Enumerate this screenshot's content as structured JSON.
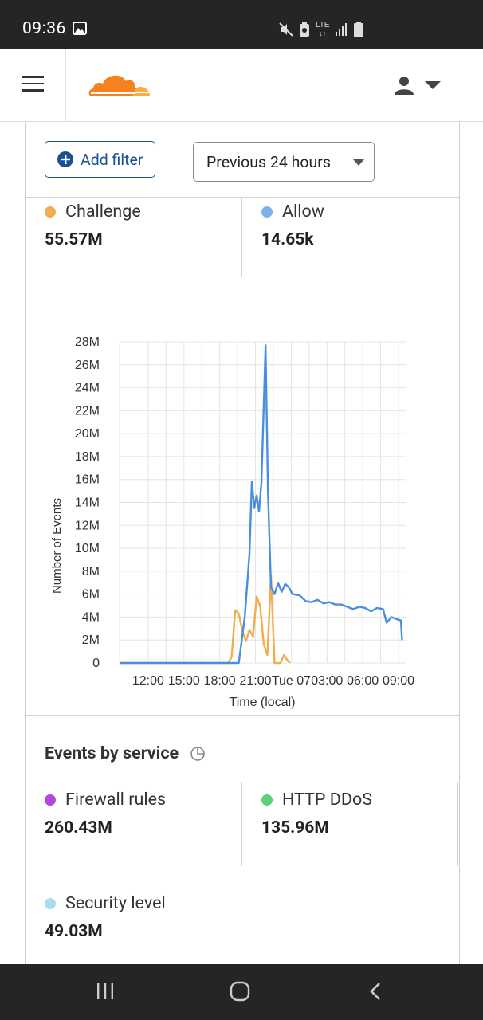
{
  "status_bar": {
    "time": "09:36",
    "icons": [
      "gallery-icon",
      "mute-icon",
      "battery-saver-icon",
      "lte-icon",
      "signal-icon",
      "battery-icon"
    ],
    "lte_label": "LTE"
  },
  "header": {
    "logo": "cloudflare-logo",
    "colors": {
      "logo_orange": "#f6821f",
      "logo_light": "#fbad41"
    }
  },
  "filters": {
    "add_filter_label": "Add filter",
    "time_range_value": "Previous 24 hours"
  },
  "action_stats": [
    {
      "label": "Challenge",
      "value": "55.57M",
      "color": "#f2ad4e"
    },
    {
      "label": "Allow",
      "value": "14.65k",
      "color": "#7fb1ea"
    }
  ],
  "chart_data": {
    "type": "line",
    "xlabel": "Time (local)",
    "ylabel": "Number of Events",
    "ylim": [
      0,
      28000000
    ],
    "y_ticks": [
      "28M",
      "26M",
      "24M",
      "22M",
      "20M",
      "18M",
      "16M",
      "14M",
      "12M",
      "10M",
      "8M",
      "6M",
      "4M",
      "2M",
      "0"
    ],
    "x_ticks": [
      "12:00",
      "15:00",
      "18:00",
      "21:00",
      "Tue 07",
      "03:00",
      "06:00",
      "09:00"
    ],
    "x_tick_hours": [
      12,
      15,
      18,
      21,
      24,
      27,
      30,
      33
    ],
    "xlim_hours": [
      9.6,
      33.6
    ],
    "grid": true,
    "legend": "none",
    "series": [
      {
        "color": "#f2ad4e",
        "points": [
          [
            9.6,
            0
          ],
          [
            18.7,
            0
          ],
          [
            19.0,
            500000
          ],
          [
            19.3,
            4600000
          ],
          [
            19.6,
            4300000
          ],
          [
            19.9,
            2800000
          ],
          [
            20.2,
            1900000
          ],
          [
            20.5,
            2900000
          ],
          [
            20.8,
            2300000
          ],
          [
            21.1,
            5800000
          ],
          [
            21.4,
            4900000
          ],
          [
            21.7,
            1600000
          ],
          [
            22.0,
            700000
          ],
          [
            22.3,
            7600000
          ],
          [
            22.6,
            0
          ],
          [
            23.1,
            0
          ],
          [
            23.4,
            700000
          ],
          [
            23.7,
            200000
          ],
          [
            23.9,
            0
          ]
        ]
      },
      {
        "color": "#4a8ee0",
        "points": [
          [
            9.6,
            0
          ],
          [
            19.6,
            0
          ],
          [
            20.1,
            4000000
          ],
          [
            20.5,
            9500000
          ],
          [
            20.7,
            15800000
          ],
          [
            20.9,
            13500000
          ],
          [
            21.1,
            14600000
          ],
          [
            21.3,
            13200000
          ],
          [
            21.5,
            15700000
          ],
          [
            21.85,
            27700000
          ],
          [
            22.05,
            15000000
          ],
          [
            22.3,
            6600000
          ],
          [
            22.6,
            6000000
          ],
          [
            22.9,
            7000000
          ],
          [
            23.2,
            6200000
          ],
          [
            23.5,
            6900000
          ],
          [
            23.8,
            6600000
          ],
          [
            24.1,
            6000000
          ],
          [
            24.7,
            5900000
          ],
          [
            25.2,
            5400000
          ],
          [
            25.7,
            5300000
          ],
          [
            26.2,
            5500000
          ],
          [
            26.7,
            5200000
          ],
          [
            27.2,
            5300000
          ],
          [
            27.7,
            5100000
          ],
          [
            28.2,
            5100000
          ],
          [
            28.7,
            4900000
          ],
          [
            29.2,
            4700000
          ],
          [
            29.7,
            4900000
          ],
          [
            30.2,
            4800000
          ],
          [
            30.7,
            4500000
          ],
          [
            31.2,
            4800000
          ],
          [
            31.7,
            4700000
          ],
          [
            32.0,
            3500000
          ],
          [
            32.4,
            4000000
          ],
          [
            32.9,
            3800000
          ],
          [
            33.2,
            3700000
          ],
          [
            33.3,
            2000000
          ]
        ]
      }
    ]
  },
  "events_by_service": {
    "heading": "Events by service",
    "items": [
      {
        "label": "Firewall rules",
        "value": "260.43M",
        "color": "#b347d6"
      },
      {
        "label": "HTTP DDoS",
        "value": "135.96M",
        "color": "#5ccf78"
      },
      {
        "label": "Security level",
        "value": "49.03M",
        "color": "#a8dcef"
      }
    ]
  },
  "nav_bar": {
    "icons": [
      "recent-apps-icon",
      "home-icon",
      "back-icon"
    ]
  }
}
